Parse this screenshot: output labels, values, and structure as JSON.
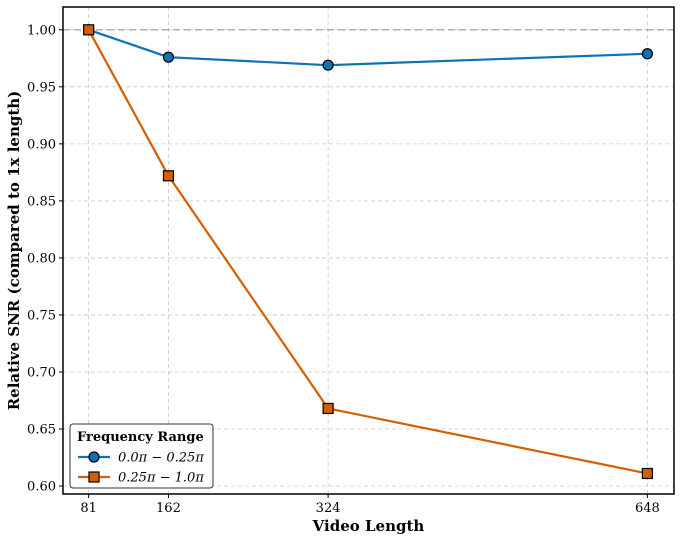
{
  "chart_data": {
    "type": "line",
    "xlabel": "Video Length",
    "ylabel": "Relative SNR (compared to 1x length)",
    "x_ticks": [
      81,
      162,
      324,
      648
    ],
    "y_ticks": [
      "0.60",
      "0.65",
      "0.70",
      "0.75",
      "0.80",
      "0.85",
      "0.90",
      "0.95",
      "1.00"
    ],
    "xlim": [
      55,
      675
    ],
    "ylim": [
      0.593,
      1.02
    ],
    "reference_line": 1.0,
    "grid": true,
    "legend": {
      "title": "Frequency Range",
      "placement": "lower-left"
    },
    "series": [
      {
        "name": "0.0π − 0.25π",
        "color": "#0e72b5",
        "marker": "circle",
        "x": [
          81,
          162,
          324,
          648
        ],
        "values": [
          1.0,
          0.976,
          0.969,
          0.979
        ]
      },
      {
        "name": "0.25π − 1.0π",
        "color": "#d55e00",
        "marker": "square",
        "x": [
          81,
          162,
          324,
          648
        ],
        "values": [
          1.0,
          0.872,
          0.668,
          0.611
        ]
      }
    ]
  }
}
